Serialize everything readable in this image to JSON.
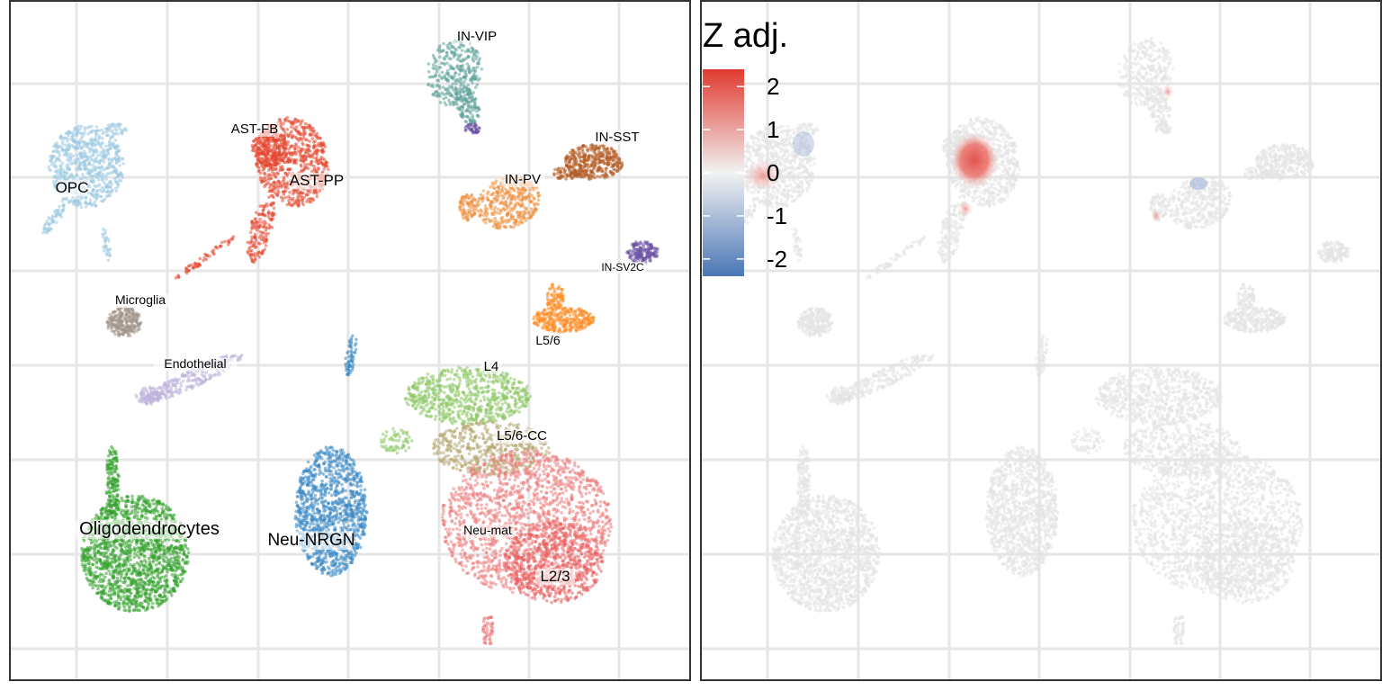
{
  "chart_data": [
    {
      "type": "scatter",
      "panel": "left",
      "description_of_encoding": "UMAP embedding, points colored by cell type",
      "grid": true,
      "clusters": [
        {
          "name": "OPC",
          "color": "#9ecae1"
        },
        {
          "name": "AST-FB",
          "color": "#e6462f"
        },
        {
          "name": "AST-PP",
          "color": "#e34a33"
        },
        {
          "name": "IN-VIP",
          "color": "#5fa39a"
        },
        {
          "name": "IN-SST",
          "color": "#b25b22"
        },
        {
          "name": "IN-PV",
          "color": "#ee8e3c"
        },
        {
          "name": "IN-SV2C",
          "color": "#6a51a3"
        },
        {
          "name": "Microglia",
          "color": "#a3968a"
        },
        {
          "name": "Endothelial",
          "color": "#bcb0d8"
        },
        {
          "name": "L5/6",
          "color": "#fd8d25"
        },
        {
          "name": "L4",
          "color": "#8cc665"
        },
        {
          "name": "L5/6-CC",
          "color": "#b4a772"
        },
        {
          "name": "Oligodendrocytes",
          "color": "#33a02c"
        },
        {
          "name": "Neu-NRGN",
          "color": "#3a88c4"
        },
        {
          "name": "Neu-mat",
          "color": "#ec7b7b"
        },
        {
          "name": "L2/3",
          "color": "#ea5d5d"
        }
      ]
    },
    {
      "type": "scatter",
      "panel": "right",
      "grid": true,
      "legend": {
        "title": "Z adj.",
        "ticks": [
          "2",
          "1",
          "0",
          "-1",
          "-2"
        ],
        "tick_values": [
          2,
          1,
          0,
          -1,
          -2
        ],
        "range": [
          -2.4,
          2.4
        ],
        "colors": {
          "high": "#e03a30",
          "mid": "#f2f2f2",
          "low": "#4a76b5"
        }
      },
      "highlights": [
        {
          "cluster": "AST-PP",
          "z": 2.2
        },
        {
          "cluster": "OPC-edge",
          "z": 1.0
        },
        {
          "cluster": "IN-VIP-tip",
          "z": 0.8
        },
        {
          "cluster": "IN-PV-left",
          "z": 1.2
        },
        {
          "cluster": "IN-SST-lower",
          "z": -0.9
        },
        {
          "cluster": "OPC-upper",
          "z": -0.8
        }
      ]
    }
  ],
  "labels": {
    "opc": "OPC",
    "ast_fb": "AST-FB",
    "ast_pp": "AST-PP",
    "in_vip": "IN-VIP",
    "in_sst": "IN-SST",
    "in_pv": "IN-PV",
    "in_sv2c": "IN-SV2C",
    "microglia": "Microglia",
    "endothelial": "Endothelial",
    "l56": "L5/6",
    "l4": "L4",
    "l56cc": "L5/6-CC",
    "oligo": "Oligodendrocytes",
    "neu_nrgn": "Neu-NRGN",
    "neu_mat": "Neu-mat",
    "l23": "L2/3"
  }
}
